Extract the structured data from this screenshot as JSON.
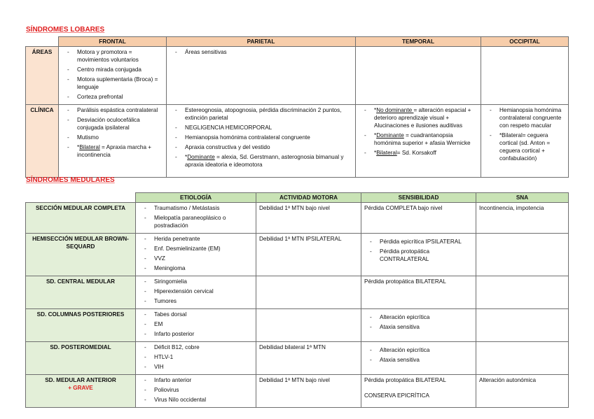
{
  "lobares": {
    "title": "SÍNDROMES LOBARES",
    "headers": [
      "FRONTAL",
      "PARIETAL",
      "TEMPORAL",
      "OCCIPITAL"
    ],
    "rows": [
      {
        "label": "ÁREAS",
        "cells": [
          [
            {
              "t": "Motora y promotora = movimientos voluntarios"
            },
            {
              "t": "Centro mirada conjugada"
            },
            {
              "t": "Motora suplementaria (Broca) = lenguaje"
            },
            {
              "t": "Corteza prefrontal"
            }
          ],
          [
            {
              "t": "Áreas sensitivas"
            }
          ],
          [],
          []
        ]
      },
      {
        "label": "CLÍNICA",
        "cells": [
          [
            {
              "t": "Parálisis espástica contralateral"
            },
            {
              "t": "Desviación oculocefálica conjugada ipsilateral"
            },
            {
              "t": "Mutismo"
            },
            {
              "pre": "*",
              "u": "Bilateral",
              "t": " = Apraxia marcha + incontinencia"
            }
          ],
          [
            {
              "t": "Estereognosia, atopognosia, pérdida discriminación 2 puntos, extinción parietal"
            },
            {
              "t": "NEGLIGENCIA HEMICORPORAL"
            },
            {
              "t": "Hemianopsia homónima contralateral congruente"
            },
            {
              "t": "Apraxia constructiva y del vestido"
            },
            {
              "pre": "*",
              "u": "Dominante",
              "t": " = alexia, Sd. Gerstmann, asterognosia bimanual y apraxia ideatoria e ideomotora"
            }
          ],
          [
            {
              "pre": "*",
              "u": "No dominante ",
              "t": "= alteración espacial + deterioro aprendizaje visual + Alucinaciones e ilusiones auditivas"
            },
            {
              "pre": "*",
              "u": "Dominante",
              "t": " = cuadrantanopsia homónima superior + afasia Wernicke"
            },
            {
              "pre": "*",
              "u": "Bilateral",
              "t": "= Sd. Korsakoff"
            }
          ],
          [
            {
              "t": "Hemianopsia homónima contralateral congruente con respeto macular"
            },
            {
              "t": "*Bilateral= ceguera cortical (sd. Anton = ceguera cortical + confabulación)"
            }
          ]
        ]
      }
    ]
  },
  "medulares": {
    "title": "SÍNDROMES MEDULARES",
    "headers": [
      "ETIOLOGÍA",
      "ACTIVIDAD MOTORA",
      "SENSIBILIDAD",
      "SNA"
    ],
    "rows": [
      {
        "label": "SECCIÓN MEDULAR COMPLETA",
        "etiologia": [
          "Traumatismo / Metástasis",
          "Mielopatía paraneoplásico o postradiación"
        ],
        "motora": "Debilidad 1ª MTN bajo nivel",
        "sensibilidad": {
          "text": [
            "Pérdida COMPLETA bajo nivel"
          ]
        },
        "sna": "Incontinencia, impotencia"
      },
      {
        "label": "HEMISECCIÓN MEDULAR BROWN-SEQUARD",
        "etiologia": [
          "Herida penetrante",
          "Enf. Desmielinizante (EM)",
          "VVZ",
          "Meningioma"
        ],
        "motora": "Debilidad 1ª MTN IPSILATERAL",
        "sensibilidad": {
          "list": [
            "Pérdida epicrítica IPSILATERAL",
            "Pérdida protopática CONTRALATERAL"
          ]
        },
        "sna": ""
      },
      {
        "label": "SD. CENTRAL MEDULAR",
        "etiologia": [
          "Siringomielia",
          "Hiperextensión cervical",
          "Tumores"
        ],
        "motora": "",
        "sensibilidad": {
          "text": [
            "Pérdida protopática BILATERAL"
          ]
        },
        "sna": ""
      },
      {
        "label": "SD. COLUMNAS POSTERIORES",
        "etiologia": [
          "Tabes dorsal",
          "EM",
          "Infarto posterior"
        ],
        "motora": "",
        "sensibilidad": {
          "list": [
            "Alteración epicrítica",
            "Ataxia sensitiva"
          ]
        },
        "sna": ""
      },
      {
        "label": "SD. POSTEROMEDIAL",
        "etiologia": [
          "Déficit B12, cobre",
          "HTLV-1",
          "VIH"
        ],
        "motora": "Debilidad bilateral 1ª MTN",
        "sensibilidad": {
          "list": [
            "Alteración epicrítica",
            "Ataxia sensitiva"
          ]
        },
        "sna": ""
      },
      {
        "label": "SD. MEDULAR ANTERIOR",
        "label_note": "+ GRAVE",
        "etiologia": [
          "Infarto anterior",
          "Poliovirus",
          "Virus Nilo occidental"
        ],
        "motora": "Debilidad 1ª MTN bajo nivel",
        "sensibilidad": {
          "text": [
            "Pérdida protopática BILATERAL",
            "CONSERVA EPICRÍTICA"
          ]
        },
        "sna": "Alteración autonómica"
      }
    ]
  },
  "colors": {
    "title_red": "#e02020",
    "lobares_header": "#f7cdaa",
    "medulares_header": "#c9e3b5"
  }
}
